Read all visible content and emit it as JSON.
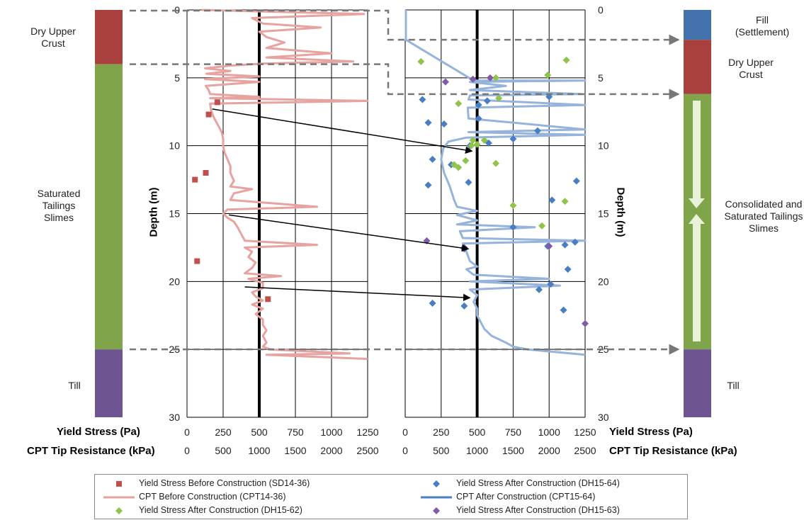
{
  "zones_left": [
    {
      "label": "Dry Upper Crust",
      "top_depth": 0,
      "bottom_depth": 4,
      "color": "#A9403E"
    },
    {
      "label": "Saturated Tailings Slimes",
      "top_depth": 4,
      "bottom_depth": 25,
      "color": "#7FA44A"
    },
    {
      "label": "Till",
      "top_depth": 25,
      "bottom_depth": 30,
      "color": "#6E5592"
    }
  ],
  "zones_right": [
    {
      "label": "Fill (Settlement)",
      "top_depth": 0,
      "bottom_depth": 2.2,
      "color": "#4472AD"
    },
    {
      "label": "Dry Upper Crust",
      "top_depth": 2.2,
      "bottom_depth": 6.2,
      "color": "#A9403E"
    },
    {
      "label": "Consolidated and Saturated Tailings Slimes",
      "top_depth": 6.2,
      "bottom_depth": 25,
      "color": "#7FA44A"
    },
    {
      "label": "Till",
      "top_depth": 25,
      "bottom_depth": 30,
      "color": "#6E5592"
    }
  ],
  "axis_titles": {
    "depth": "Depth (m)",
    "x_top": "Yield Stress (Pa)",
    "x_bottom": "CPT Tip Resistance (kPa)"
  },
  "colors": {
    "before_marker": "#C0504D",
    "before_line": "#E6A3A0",
    "after_marker_64": "#4A7EC2",
    "after_line": "#95B3DB",
    "after_marker_62": "#8FC449",
    "after_marker_63": "#7F5CA5",
    "arrow": "#000000",
    "reference_line": "#000000"
  },
  "chart_data": [
    {
      "type": "scatter",
      "panel": "before",
      "ylabel": "Depth (m)",
      "ylim": [
        30,
        0
      ],
      "yticks": [
        "0",
        "5",
        "10",
        "15",
        "20",
        "25",
        "30"
      ],
      "x_primary": {
        "label": "Yield Stress (Pa)",
        "range": [
          0,
          1250
        ],
        "ticks": [
          "0",
          "250",
          "500",
          "750",
          "1000",
          "1250"
        ]
      },
      "x_secondary": {
        "label": "CPT Tip Resistance (kPa)",
        "range": [
          0,
          2500
        ],
        "ticks": [
          "0",
          "500",
          "1000",
          "1500",
          "2000",
          "2500"
        ]
      },
      "grid": true,
      "reference_x_kpa": 1000,
      "series": [
        {
          "name": "Yield Stress Before Construction (SD14-36)",
          "axis": "primary",
          "points": [
            [
              210,
              6.8
            ],
            [
              150,
              7.7
            ],
            [
              130,
              12
            ],
            [
              55,
              12.5
            ],
            [
              70,
              18.5
            ],
            [
              560,
              21.3
            ]
          ]
        },
        {
          "name": "CPT Before Construction (CPT14-36)",
          "axis": "secondary",
          "points": [
            [
              200,
              0
            ],
            [
              2450,
              0.3
            ],
            [
              900,
              0.6
            ],
            [
              1050,
              1
            ],
            [
              1850,
              1.3
            ],
            [
              1000,
              1.6
            ],
            [
              1100,
              2
            ],
            [
              1350,
              2.4
            ],
            [
              1100,
              2.8
            ],
            [
              2000,
              3.2
            ],
            [
              1100,
              3.5
            ],
            [
              2300,
              3.8
            ],
            [
              1050,
              3.95
            ],
            [
              600,
              4.1
            ],
            [
              250,
              4.3
            ],
            [
              600,
              4.5
            ],
            [
              270,
              4.7
            ],
            [
              1000,
              4.9
            ],
            [
              250,
              5.1
            ],
            [
              1000,
              5.3
            ],
            [
              260,
              5.6
            ],
            [
              300,
              5.9
            ],
            [
              320,
              6.2
            ],
            [
              1000,
              6.4
            ],
            [
              320,
              6.5
            ],
            [
              2500,
              6.7
            ],
            [
              320,
              6.9
            ],
            [
              330,
              7.3
            ],
            [
              360,
              7.8
            ],
            [
              400,
              8.2
            ],
            [
              440,
              8.6
            ],
            [
              480,
              9
            ],
            [
              500,
              9.5
            ],
            [
              500,
              10
            ],
            [
              520,
              10.5
            ],
            [
              560,
              11
            ],
            [
              600,
              11.5
            ],
            [
              600,
              12
            ],
            [
              650,
              12.6
            ],
            [
              600,
              13
            ],
            [
              900,
              13.2
            ],
            [
              650,
              13.5
            ],
            [
              600,
              14
            ],
            [
              1800,
              14.5
            ],
            [
              560,
              14.7
            ],
            [
              500,
              15
            ],
            [
              560,
              15.3
            ],
            [
              650,
              15.6
            ],
            [
              700,
              16
            ],
            [
              750,
              16.5
            ],
            [
              800,
              17
            ],
            [
              1800,
              17.3
            ],
            [
              800,
              17.5
            ],
            [
              900,
              17.8
            ],
            [
              850,
              18.2
            ],
            [
              950,
              18.6
            ],
            [
              900,
              19
            ],
            [
              800,
              19.4
            ],
            [
              1300,
              19.6
            ],
            [
              850,
              19.8
            ],
            [
              1050,
              20.1
            ],
            [
              1050,
              20.5
            ],
            [
              900,
              20.8
            ],
            [
              950,
              21.1
            ],
            [
              1050,
              21.4
            ],
            [
              900,
              21.7
            ],
            [
              1050,
              22
            ],
            [
              950,
              22.4
            ],
            [
              1050,
              22.8
            ],
            [
              1050,
              23.2
            ],
            [
              1100,
              23.6
            ],
            [
              1050,
              24
            ],
            [
              1100,
              24.5
            ],
            [
              1050,
              24.8
            ],
            [
              1150,
              25
            ],
            [
              2250,
              25.3
            ],
            [
              1100,
              25.4
            ],
            [
              2500,
              25.7
            ]
          ]
        }
      ]
    },
    {
      "type": "scatter",
      "panel": "after",
      "ylabel": "Depth (m)",
      "ylim": [
        30,
        0
      ],
      "yticks": [
        "0",
        "5",
        "10",
        "15",
        "20",
        "25",
        "30"
      ],
      "x_primary": {
        "label": "Yield Stress (Pa)",
        "range": [
          0,
          1250
        ],
        "ticks": [
          "0",
          "250",
          "500",
          "750",
          "1000",
          "1250"
        ]
      },
      "x_secondary": {
        "label": "CPT Tip Resistance (kPa)",
        "range": [
          0,
          2500
        ],
        "ticks": [
          "0",
          "500",
          "1000",
          "1500",
          "2000",
          "2500"
        ]
      },
      "grid": true,
      "reference_x_kpa": 1000,
      "series": [
        {
          "name": "Yield Stress After Construction (DH15-64)",
          "axis": "primary",
          "points": [
            [
              120,
              6.6
            ],
            [
              570,
              6.7
            ],
            [
              510,
              7
            ],
            [
              160,
              8.3
            ],
            [
              270,
              8.4
            ],
            [
              510,
              8
            ],
            [
              920,
              8.9
            ],
            [
              750,
              9.5
            ],
            [
              580,
              9.8
            ],
            [
              450,
              10
            ],
            [
              190,
              11
            ],
            [
              320,
              11.4
            ],
            [
              440,
              12.7
            ],
            [
              1190,
              12.6
            ],
            [
              160,
              12.9
            ],
            [
              1020,
              14
            ],
            [
              1180,
              17.1
            ],
            [
              1110,
              17.3
            ],
            [
              750,
              16
            ],
            [
              990,
              17.4
            ],
            [
              410,
              17.6
            ],
            [
              1130,
              19.1
            ],
            [
              930,
              20.6
            ],
            [
              1010,
              20.2
            ],
            [
              190,
              21.6
            ],
            [
              410,
              21.8
            ],
            [
              1100,
              22.1
            ],
            [
              1000,
              6.4
            ]
          ]
        },
        {
          "name": "CPT After Construction (CPT15-64)",
          "axis": "secondary",
          "points": [
            [
              10,
              0
            ],
            [
              10,
              2.2
            ],
            [
              950,
              5.2
            ],
            [
              2500,
              5.2
            ],
            [
              900,
              5.3
            ],
            [
              1400,
              5.6
            ],
            [
              900,
              5.9
            ],
            [
              2450,
              6.2
            ],
            [
              900,
              6.3
            ],
            [
              880,
              6.6
            ],
            [
              2500,
              7
            ],
            [
              870,
              7.2
            ],
            [
              880,
              8
            ],
            [
              2500,
              8.8
            ],
            [
              880,
              9
            ],
            [
              2500,
              9.2
            ],
            [
              850,
              9.4
            ],
            [
              600,
              9.7
            ],
            [
              530,
              10.2
            ],
            [
              500,
              11
            ],
            [
              540,
              12
            ],
            [
              620,
              13
            ],
            [
              680,
              14
            ],
            [
              720,
              14.5
            ],
            [
              1000,
              14.8
            ],
            [
              720,
              15.1
            ],
            [
              1000,
              15.5
            ],
            [
              720,
              15.8
            ],
            [
              1800,
              16
            ],
            [
              760,
              16.3
            ],
            [
              800,
              16.8
            ],
            [
              2500,
              17
            ],
            [
              800,
              17.2
            ],
            [
              850,
              17.8
            ],
            [
              900,
              18.5
            ],
            [
              1000,
              18.9
            ],
            [
              850,
              19.1
            ],
            [
              950,
              19.5
            ],
            [
              2000,
              19.8
            ],
            [
              900,
              20
            ],
            [
              2150,
              20.3
            ],
            [
              900,
              20.6
            ],
            [
              1000,
              21
            ],
            [
              950,
              21.5
            ],
            [
              1000,
              22
            ],
            [
              1000,
              22.5
            ],
            [
              1050,
              23
            ],
            [
              1100,
              23.5
            ],
            [
              1200,
              24
            ],
            [
              1400,
              24.5
            ],
            [
              1500,
              24.8
            ],
            [
              1700,
              25
            ],
            [
              1900,
              25.1
            ],
            [
              2500,
              25.4
            ]
          ]
        },
        {
          "name": "Yield Stress After Construction (DH15-62)",
          "axis": "primary",
          "points": [
            [
              110,
              3.8
            ],
            [
              1120,
              3.7
            ],
            [
              630,
              5
            ],
            [
              990,
              4.8
            ],
            [
              650,
              6.5
            ],
            [
              370,
              6.9
            ],
            [
              470,
              9.6
            ],
            [
              500,
              9.9
            ],
            [
              460,
              10
            ],
            [
              550,
              9.6
            ],
            [
              630,
              11.3
            ],
            [
              340,
              11.4
            ],
            [
              420,
              11.1
            ],
            [
              370,
              11.6
            ],
            [
              750,
              14.4
            ],
            [
              1110,
              14.1
            ],
            [
              950,
              15.9
            ]
          ]
        },
        {
          "name": "Yield Stress After Construction (DH15-63)",
          "axis": "primary",
          "points": [
            [
              280,
              5.3
            ],
            [
              470,
              5.1
            ],
            [
              590,
              5
            ],
            [
              150,
              17
            ],
            [
              410,
              17.5
            ],
            [
              1000,
              17.4
            ],
            [
              1250,
              23.1
            ]
          ]
        }
      ]
    }
  ],
  "arrows": [
    {
      "from_panel": "before",
      "from_kpa": 350,
      "from_depth": 7.3,
      "to_panel": "after",
      "to_kpa": 930,
      "to_depth": 10.4
    },
    {
      "from_panel": "before",
      "from_kpa": 580,
      "from_depth": 15.1,
      "to_panel": "after",
      "to_kpa": 880,
      "to_depth": 17.6
    },
    {
      "from_panel": "before",
      "from_kpa": 800,
      "from_depth": 20.4,
      "to_panel": "after",
      "to_kpa": 900,
      "to_depth": 21.2
    }
  ],
  "dashed_links": [
    {
      "left_depth": 0.05,
      "right_depth": 2.2
    },
    {
      "left_depth": 4,
      "right_depth": 6.2
    },
    {
      "left_depth": 25,
      "right_depth": 25
    }
  ]
}
